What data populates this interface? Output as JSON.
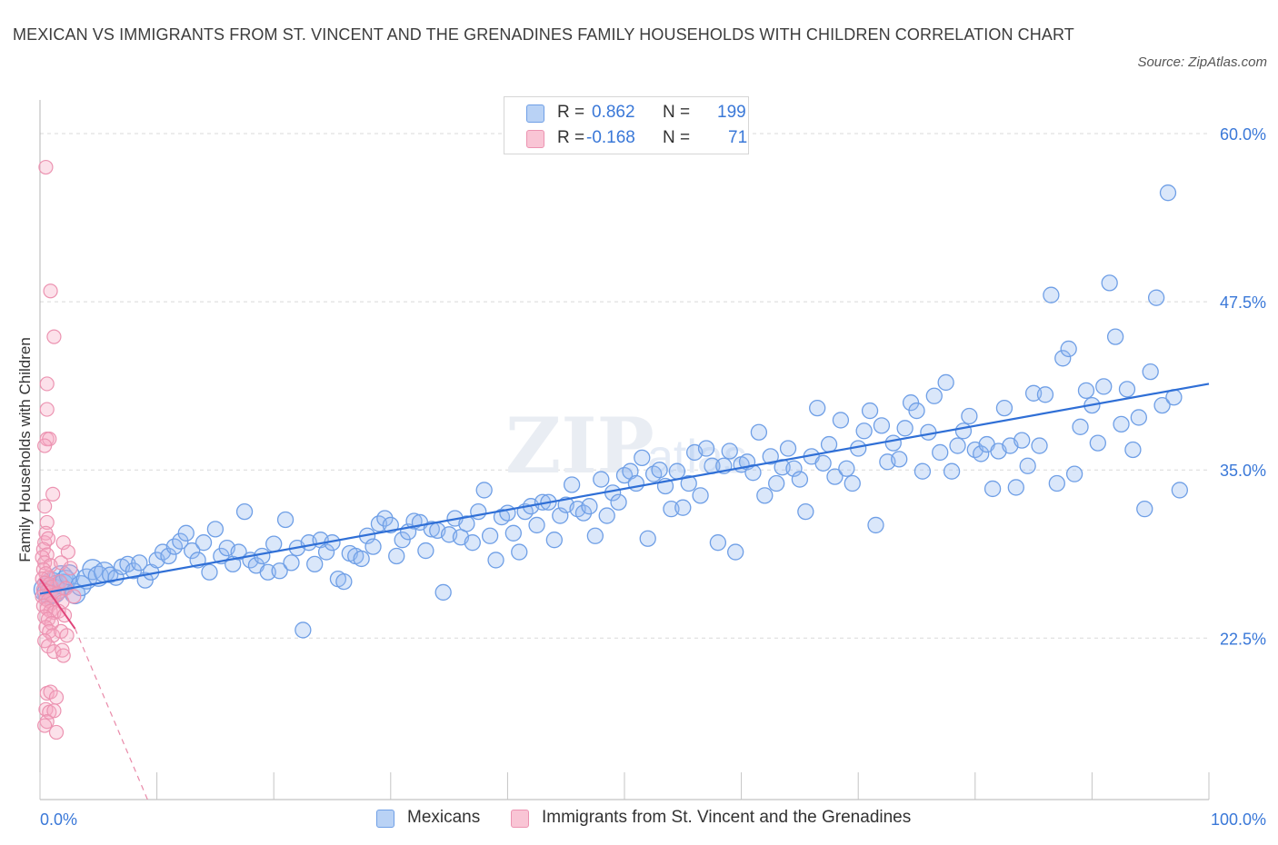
{
  "title": "MEXICAN VS IMMIGRANTS FROM ST. VINCENT AND THE GRENADINES FAMILY HOUSEHOLDS WITH CHILDREN CORRELATION CHART",
  "source": "Source: ZipAtlas.com",
  "colors": {
    "blue": "#5b93e6",
    "blue_line": "#2f6fd6",
    "pink": "#f08aaa",
    "pink_line": "#e0457a",
    "accent_text": "#3a78d8"
  },
  "legend_top": {
    "rows": [
      {
        "r_label": "R =",
        "r_value": "0.862",
        "n_label": "N =",
        "n_value": "199"
      },
      {
        "r_label": "R =",
        "r_value": "-0.168",
        "n_label": "N =",
        "n_value": "71"
      }
    ]
  },
  "legend_bottom": [
    "Mexicans",
    "Immigrants from St. Vincent and the Grenadines"
  ],
  "chart_data": {
    "type": "scatter",
    "title": "MEXICAN VS IMMIGRANTS FROM ST. VINCENT AND THE GRENADINES FAMILY HOUSEHOLDS WITH CHILDREN CORRELATION CHART",
    "xlabel": "",
    "ylabel": "Family Households with Children",
    "xlim": [
      0,
      100
    ],
    "ylim": [
      10.5,
      62.5
    ],
    "x_tick_labels": [
      "0.0%",
      "100.0%"
    ],
    "y_ticks": [
      22.5,
      35.0,
      47.5,
      60.0
    ],
    "y_tick_labels": [
      "22.5%",
      "35.0%",
      "47.5%",
      "60.0%"
    ],
    "grid": true,
    "legend": "top-center and bottom",
    "series": [
      {
        "name": "Mexicans",
        "color": "#5b93e6",
        "trend": {
          "x": [
            0,
            100
          ],
          "y": [
            25.8,
            41.4
          ]
        },
        "points": [
          [
            0.5,
            26.1
          ],
          [
            0.8,
            25.9
          ],
          [
            1.0,
            26.5
          ],
          [
            1.2,
            26.0
          ],
          [
            1.5,
            26.3
          ],
          [
            1.8,
            27.0
          ],
          [
            2.0,
            26.5
          ],
          [
            2.2,
            26.8
          ],
          [
            2.5,
            27.2
          ],
          [
            3.0,
            25.8
          ],
          [
            3.5,
            26.4
          ],
          [
            4.0,
            26.9
          ],
          [
            4.5,
            27.6
          ],
          [
            5.0,
            27.1
          ],
          [
            5.5,
            27.4
          ],
          [
            6.0,
            27.2
          ],
          [
            6.5,
            27.0
          ],
          [
            7.0,
            27.8
          ],
          [
            7.5,
            28.0
          ],
          [
            8.0,
            27.5
          ],
          [
            8.5,
            28.1
          ],
          [
            9.0,
            26.8
          ],
          [
            9.5,
            27.4
          ],
          [
            10.0,
            28.3
          ],
          [
            10.5,
            28.9
          ],
          [
            11.0,
            28.6
          ],
          [
            11.5,
            29.3
          ],
          [
            12.0,
            29.7
          ],
          [
            12.5,
            30.3
          ],
          [
            13.0,
            29.0
          ],
          [
            13.5,
            28.3
          ],
          [
            14.0,
            29.6
          ],
          [
            14.5,
            27.4
          ],
          [
            15.0,
            30.6
          ],
          [
            15.5,
            28.6
          ],
          [
            16.0,
            29.2
          ],
          [
            16.5,
            28.0
          ],
          [
            17.0,
            28.9
          ],
          [
            17.5,
            31.9
          ],
          [
            18.0,
            28.3
          ],
          [
            18.5,
            27.9
          ],
          [
            19.0,
            28.6
          ],
          [
            19.5,
            27.4
          ],
          [
            20.0,
            29.5
          ],
          [
            20.5,
            27.5
          ],
          [
            21.0,
            31.3
          ],
          [
            21.5,
            28.1
          ],
          [
            22.0,
            29.2
          ],
          [
            22.5,
            23.1
          ],
          [
            23.0,
            29.6
          ],
          [
            23.5,
            28.0
          ],
          [
            24.0,
            29.8
          ],
          [
            24.5,
            28.9
          ],
          [
            25.0,
            29.6
          ],
          [
            25.5,
            26.9
          ],
          [
            26.0,
            26.7
          ],
          [
            26.5,
            28.8
          ],
          [
            27.0,
            28.6
          ],
          [
            27.5,
            28.4
          ],
          [
            28.0,
            30.1
          ],
          [
            28.5,
            29.3
          ],
          [
            29.0,
            31.0
          ],
          [
            29.5,
            31.4
          ],
          [
            30.0,
            30.9
          ],
          [
            30.5,
            28.6
          ],
          [
            31.0,
            29.8
          ],
          [
            31.5,
            30.4
          ],
          [
            32.0,
            31.2
          ],
          [
            32.5,
            31.1
          ],
          [
            33.0,
            29.0
          ],
          [
            33.5,
            30.6
          ],
          [
            34.0,
            30.5
          ],
          [
            34.5,
            25.9
          ],
          [
            35.0,
            30.2
          ],
          [
            35.5,
            31.4
          ],
          [
            36.0,
            30.0
          ],
          [
            36.5,
            31.0
          ],
          [
            37.0,
            29.6
          ],
          [
            37.5,
            31.9
          ],
          [
            38.0,
            33.5
          ],
          [
            38.5,
            30.1
          ],
          [
            39.0,
            28.3
          ],
          [
            39.5,
            31.5
          ],
          [
            40.0,
            31.8
          ],
          [
            40.5,
            30.3
          ],
          [
            41.0,
            28.9
          ],
          [
            41.5,
            31.9
          ],
          [
            42.0,
            32.3
          ],
          [
            42.5,
            30.9
          ],
          [
            43.0,
            32.6
          ],
          [
            43.5,
            32.6
          ],
          [
            44.0,
            29.8
          ],
          [
            44.5,
            31.6
          ],
          [
            45.0,
            32.4
          ],
          [
            45.5,
            33.9
          ],
          [
            46.0,
            32.1
          ],
          [
            46.5,
            31.8
          ],
          [
            47.0,
            32.3
          ],
          [
            47.5,
            30.1
          ],
          [
            48.0,
            34.3
          ],
          [
            48.5,
            31.6
          ],
          [
            49.0,
            33.3
          ],
          [
            49.5,
            32.6
          ],
          [
            50.0,
            34.6
          ],
          [
            50.5,
            34.9
          ],
          [
            51.0,
            34.0
          ],
          [
            51.5,
            35.9
          ],
          [
            52.0,
            29.9
          ],
          [
            52.5,
            34.7
          ],
          [
            53.0,
            35.0
          ],
          [
            53.5,
            33.8
          ],
          [
            54.0,
            32.1
          ],
          [
            54.5,
            34.9
          ],
          [
            55.0,
            32.2
          ],
          [
            55.5,
            34.0
          ],
          [
            56.0,
            36.3
          ],
          [
            56.5,
            33.1
          ],
          [
            57.0,
            36.6
          ],
          [
            57.5,
            35.3
          ],
          [
            58.0,
            29.6
          ],
          [
            58.5,
            35.3
          ],
          [
            59.0,
            36.4
          ],
          [
            59.5,
            28.9
          ],
          [
            60.0,
            35.4
          ],
          [
            60.5,
            35.6
          ],
          [
            61.0,
            34.8
          ],
          [
            61.5,
            37.8
          ],
          [
            62.0,
            33.1
          ],
          [
            62.5,
            36.0
          ],
          [
            63.0,
            34.0
          ],
          [
            63.5,
            35.2
          ],
          [
            64.0,
            36.6
          ],
          [
            64.5,
            35.1
          ],
          [
            65.0,
            34.3
          ],
          [
            65.5,
            31.9
          ],
          [
            66.0,
            36.0
          ],
          [
            66.5,
            39.6
          ],
          [
            67.0,
            35.5
          ],
          [
            67.5,
            36.9
          ],
          [
            68.0,
            34.5
          ],
          [
            68.5,
            38.7
          ],
          [
            69.0,
            35.1
          ],
          [
            69.5,
            34.0
          ],
          [
            70.0,
            36.6
          ],
          [
            70.5,
            37.9
          ],
          [
            71.0,
            39.4
          ],
          [
            71.5,
            30.9
          ],
          [
            72.0,
            38.3
          ],
          [
            72.5,
            35.6
          ],
          [
            73.0,
            37.0
          ],
          [
            73.5,
            35.8
          ],
          [
            74.0,
            38.1
          ],
          [
            74.5,
            40.0
          ],
          [
            75.0,
            39.4
          ],
          [
            75.5,
            34.9
          ],
          [
            76.0,
            37.8
          ],
          [
            76.5,
            40.5
          ],
          [
            77.0,
            36.3
          ],
          [
            77.5,
            41.5
          ],
          [
            78.0,
            34.9
          ],
          [
            78.5,
            36.8
          ],
          [
            79.0,
            37.9
          ],
          [
            79.5,
            39.0
          ],
          [
            80.0,
            36.5
          ],
          [
            80.5,
            36.2
          ],
          [
            81.0,
            36.9
          ],
          [
            81.5,
            33.6
          ],
          [
            82.0,
            36.4
          ],
          [
            82.5,
            39.6
          ],
          [
            83.0,
            36.8
          ],
          [
            83.5,
            33.7
          ],
          [
            84.0,
            37.2
          ],
          [
            84.5,
            35.3
          ],
          [
            85.0,
            40.7
          ],
          [
            85.5,
            36.8
          ],
          [
            86.0,
            40.6
          ],
          [
            86.5,
            48.0
          ],
          [
            87.0,
            34.0
          ],
          [
            87.5,
            43.3
          ],
          [
            88.0,
            44.0
          ],
          [
            88.5,
            34.7
          ],
          [
            89.0,
            38.2
          ],
          [
            89.5,
            40.9
          ],
          [
            90.0,
            39.8
          ],
          [
            90.5,
            37.0
          ],
          [
            91.0,
            41.2
          ],
          [
            91.5,
            48.9
          ],
          [
            92.0,
            44.9
          ],
          [
            92.5,
            38.4
          ],
          [
            93.0,
            41.0
          ],
          [
            93.5,
            36.5
          ],
          [
            94.0,
            38.9
          ],
          [
            94.5,
            32.1
          ],
          [
            95.0,
            42.3
          ],
          [
            95.5,
            47.8
          ],
          [
            96.0,
            39.8
          ],
          [
            96.5,
            55.6
          ],
          [
            97.0,
            40.4
          ],
          [
            97.5,
            33.5
          ]
        ]
      },
      {
        "name": "Immigrants from St. Vincent and the Grenadines",
        "color": "#f08aaa",
        "trend": {
          "x": [
            0,
            3
          ],
          "y": [
            26.9,
            23.2
          ]
        },
        "trend_dashed": {
          "x": [
            3,
            9.2
          ],
          "y": [
            23.2,
            10.5
          ]
        },
        "points": [
          [
            0.5,
            57.5
          ],
          [
            0.9,
            48.3
          ],
          [
            1.2,
            44.9
          ],
          [
            0.6,
            41.4
          ],
          [
            0.6,
            39.5
          ],
          [
            0.6,
            37.3
          ],
          [
            0.8,
            37.3
          ],
          [
            0.4,
            36.8
          ],
          [
            1.1,
            33.2
          ],
          [
            0.4,
            32.3
          ],
          [
            0.6,
            31.1
          ],
          [
            0.5,
            30.3
          ],
          [
            0.4,
            29.6
          ],
          [
            0.7,
            29.9
          ],
          [
            0.3,
            29.1
          ],
          [
            0.6,
            28.7
          ],
          [
            0.2,
            28.5
          ],
          [
            0.4,
            28.1
          ],
          [
            0.9,
            27.9
          ],
          [
            0.3,
            27.6
          ],
          [
            0.5,
            27.3
          ],
          [
            0.7,
            27.0
          ],
          [
            0.2,
            26.9
          ],
          [
            0.4,
            26.6
          ],
          [
            0.8,
            26.5
          ],
          [
            1.0,
            26.3
          ],
          [
            0.3,
            26.1
          ],
          [
            0.6,
            26.0
          ],
          [
            0.9,
            25.9
          ],
          [
            1.2,
            25.7
          ],
          [
            0.2,
            25.6
          ],
          [
            0.5,
            25.4
          ],
          [
            0.7,
            25.3
          ],
          [
            1.0,
            25.1
          ],
          [
            0.3,
            24.9
          ],
          [
            0.6,
            24.7
          ],
          [
            0.9,
            24.5
          ],
          [
            1.2,
            24.4
          ],
          [
            0.4,
            24.1
          ],
          [
            0.7,
            23.9
          ],
          [
            1.0,
            23.6
          ],
          [
            0.5,
            23.3
          ],
          [
            0.8,
            23.0
          ],
          [
            1.1,
            22.7
          ],
          [
            0.4,
            22.3
          ],
          [
            0.7,
            21.9
          ],
          [
            1.2,
            21.5
          ],
          [
            0.6,
            18.4
          ],
          [
            0.9,
            18.5
          ],
          [
            1.4,
            18.1
          ],
          [
            0.5,
            17.2
          ],
          [
            0.8,
            17.0
          ],
          [
            1.2,
            17.1
          ],
          [
            0.6,
            16.3
          ],
          [
            0.4,
            16.0
          ],
          [
            1.4,
            15.5
          ],
          [
            2.0,
            29.6
          ],
          [
            2.4,
            28.9
          ],
          [
            1.8,
            28.1
          ],
          [
            2.6,
            27.7
          ],
          [
            1.7,
            26.7
          ],
          [
            2.2,
            26.2
          ],
          [
            1.5,
            25.8
          ],
          [
            2.9,
            25.6
          ],
          [
            1.9,
            25.2
          ],
          [
            1.6,
            24.5
          ],
          [
            2.1,
            24.2
          ],
          [
            1.8,
            23.0
          ],
          [
            2.3,
            22.7
          ],
          [
            1.9,
            21.6
          ],
          [
            2.0,
            21.2
          ]
        ]
      }
    ]
  }
}
